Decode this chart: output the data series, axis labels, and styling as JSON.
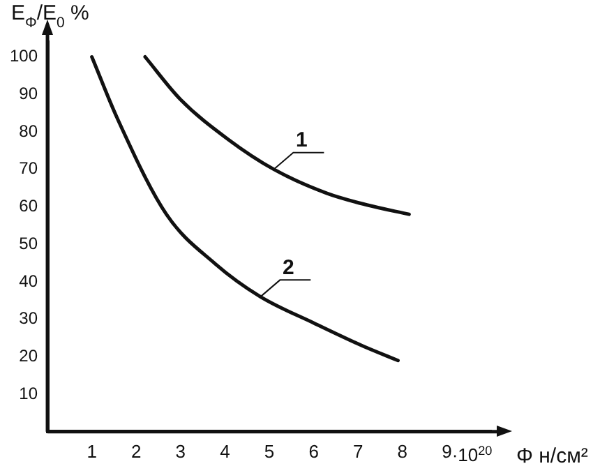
{
  "chart_data": {
    "type": "line",
    "ylabel": "E$_{Φ}$/E$_{0}$ %",
    "xlabel": "Φ н/см²",
    "xlim": [
      0,
      10
    ],
    "ylim": [
      0,
      104
    ],
    "xticks": [
      1,
      2,
      3,
      4,
      5,
      6,
      7,
      8,
      9
    ],
    "annotations": [
      "·10$^{20}$"
    ],
    "yticks": [
      10,
      20,
      30,
      40,
      50,
      60,
      70,
      80,
      90,
      100
    ],
    "grid": false,
    "legend": false,
    "marker": "none",
    "line_style": "solid",
    "series": [
      {
        "name": "1",
        "color": "#111111",
        "x": [
          2.2,
          3.0,
          4.07,
          5.1,
          6.3,
          7.2,
          8.15
        ],
        "values": [
          100,
          88.6,
          78,
          70,
          63.6,
          60.5,
          58
        ]
      },
      {
        "name": "2",
        "color": "#111111",
        "x": [
          1.0,
          1.57,
          2.68,
          3.78,
          4.8,
          6.0,
          7.1,
          7.9
        ],
        "values": [
          100,
          83.7,
          58,
          44.8,
          36,
          29,
          22.9,
          19
        ]
      }
    ]
  }
}
